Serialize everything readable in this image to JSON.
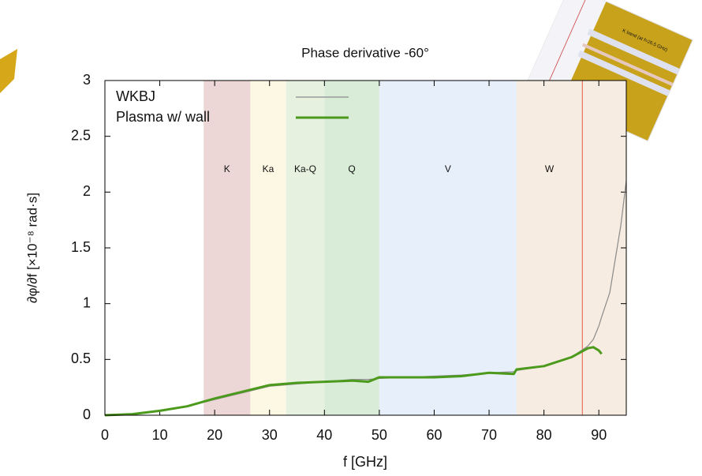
{
  "chart_data": {
    "type": "line",
    "title": "Phase derivative -60°",
    "x_label": "f [GHz]",
    "y_label": "∂φ/∂f [×10⁻⁸ rad·s]",
    "x": [
      0,
      5,
      10,
      15,
      20,
      25,
      30,
      35,
      40,
      45,
      48,
      50,
      55,
      60,
      65,
      70,
      74.5,
      75,
      80,
      85,
      88,
      89,
      90,
      90.5,
      92,
      93,
      94,
      95
    ],
    "series": [
      {
        "name": "WKBJ",
        "color": "#8a8a8a",
        "width": 1.2,
        "values": [
          0,
          0.01,
          0.04,
          0.08,
          0.14,
          0.2,
          0.26,
          0.28,
          0.3,
          0.32,
          0.32,
          0.33,
          0.34,
          0.35,
          0.36,
          0.38,
          0.39,
          0.4,
          0.44,
          0.52,
          0.62,
          0.68,
          0.8,
          0.88,
          1.1,
          1.4,
          1.7,
          2.1
        ]
      },
      {
        "name": "Plasma w/ wall",
        "color": "#4c9a1c",
        "width": 3,
        "values": [
          0,
          0.01,
          0.04,
          0.08,
          0.15,
          0.21,
          0.27,
          0.29,
          0.3,
          0.31,
          0.3,
          0.34,
          0.34,
          0.34,
          0.35,
          0.38,
          0.37,
          0.41,
          0.44,
          0.52,
          0.6,
          0.61,
          0.58,
          0.55,
          null,
          null,
          null,
          null
        ]
      }
    ],
    "bands": [
      {
        "label": "K",
        "range": [
          18,
          26.5
        ],
        "color": "#ecd6d6"
      },
      {
        "label": "Ka",
        "range": [
          26.5,
          33
        ],
        "color": "#fdf8e3"
      },
      {
        "label": "Ka-Q",
        "range": [
          33,
          40
        ],
        "color": "#e6f1e0"
      },
      {
        "label": "Q",
        "range": [
          40,
          50
        ],
        "color": "#d9ecd8"
      },
      {
        "label": "V",
        "range": [
          50,
          75
        ],
        "color": "#e7effb"
      },
      {
        "label": "W",
        "range": [
          75,
          95
        ],
        "color": "#f7ece1"
      }
    ],
    "band_label_y": 2.2,
    "vline": {
      "x": 87,
      "color": "#e8735f"
    },
    "xlim": [
      0,
      95
    ],
    "ylim": [
      0,
      3
    ],
    "xticks": [
      0,
      10,
      20,
      30,
      40,
      50,
      60,
      70,
      80,
      90
    ],
    "yticks": [
      0,
      0.5,
      1,
      1.5,
      2,
      2.5,
      3
    ],
    "inset_caption": "K band (at f=26.5 GHz)"
  }
}
